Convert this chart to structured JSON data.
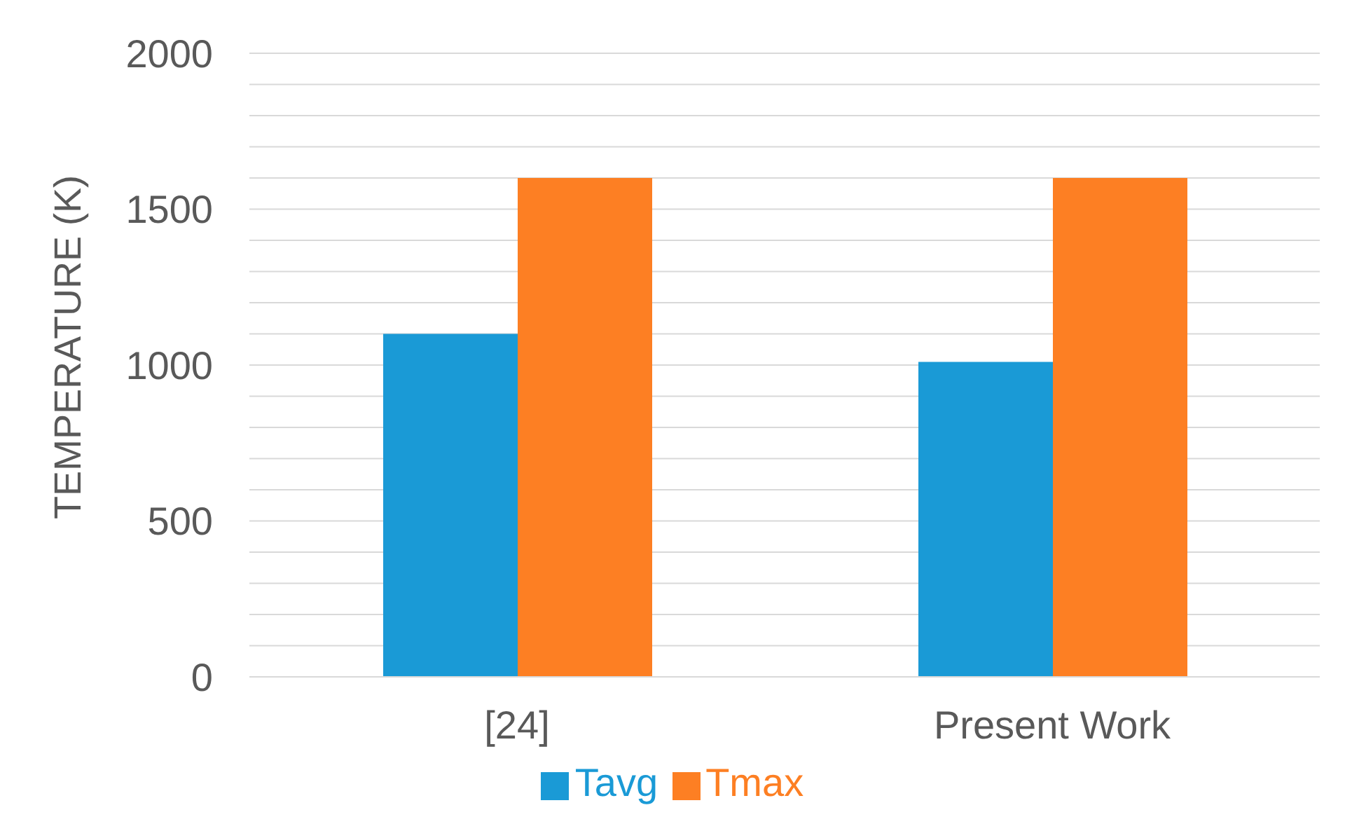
{
  "chart_data": {
    "type": "bar",
    "ylabel": "TEMPERATURE (K)",
    "categories": [
      "[24]",
      "Present Work"
    ],
    "series": [
      {
        "name": "Tavg",
        "color": "#1a9ad6",
        "values": [
          1100,
          1010
        ]
      },
      {
        "name": "Tmax",
        "color": "#fd7f23",
        "values": [
          1600,
          1600
        ]
      }
    ],
    "ylim": [
      0,
      2000
    ],
    "yticks": [
      0,
      {
        "value": 100,
        "label": null
      },
      {
        "value": 200,
        "label": null
      },
      {
        "value": 300,
        "label": null
      },
      {
        "value": 400,
        "label": null
      },
      500,
      {
        "value": 600,
        "label": null
      },
      {
        "value": 700,
        "label": null
      },
      {
        "value": 800,
        "label": null
      },
      {
        "value": 900,
        "label": null
      },
      1000,
      {
        "value": 1100,
        "label": null
      },
      {
        "value": 1200,
        "label": null
      },
      {
        "value": 1300,
        "label": null
      },
      {
        "value": 1400,
        "label": null
      },
      1500,
      {
        "value": 1600,
        "label": null
      },
      {
        "value": 1700,
        "label": null
      },
      {
        "value": 1800,
        "label": null
      },
      {
        "value": 1900,
        "label": null
      },
      2000
    ],
    "grid": "y",
    "legend": "bottom"
  }
}
